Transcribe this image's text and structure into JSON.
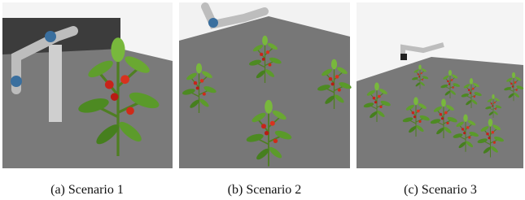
{
  "figure": {
    "panels": [
      {
        "caption": "(a) Scenario 1"
      },
      {
        "caption": "(b) Scenario 2"
      },
      {
        "caption": "(c) Scenario 3"
      }
    ]
  }
}
